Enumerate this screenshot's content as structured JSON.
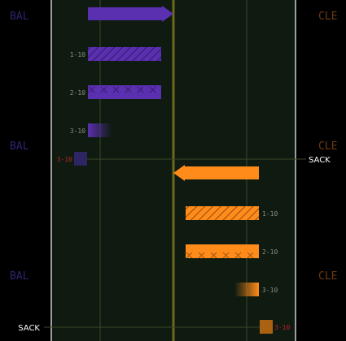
{
  "colors": {
    "page_bg": "#000000",
    "field": "#0f1a10",
    "field_border": "#ffffff",
    "grid": "#3a4a26",
    "midline": "#6b6b1a",
    "purple": "#5a2fb0",
    "purple_dark": "#2e2563",
    "orange": "#ff8c1a",
    "orange_dark": "#a86212",
    "row_label": "#8a8f80",
    "sack_label": "#ffffff",
    "sack_tick": "#b8262a",
    "side_left": "#2d2470",
    "side_right": "#6a3a16"
  },
  "sides": {
    "left": [
      "BAL",
      "BAL",
      "BAL"
    ],
    "right": [
      "CLE",
      "CLE",
      "CLE"
    ]
  },
  "chart_data": {
    "type": "bar",
    "field": {
      "x_range": [
        -10,
        10
      ]
    },
    "drives": [
      {
        "team": "BAL",
        "color": "purple",
        "direction": "right",
        "drive_arrow": {
          "start": -7,
          "end": 0
        },
        "plays": [
          {
            "label": "1-10",
            "start": -7,
            "end": -1,
            "style": "hatch"
          },
          {
            "label": "2-10",
            "start": -7,
            "end": -1,
            "style": "cross"
          },
          {
            "label": "3-10",
            "start": -7,
            "end": -5,
            "style": "fade"
          }
        ],
        "sack": {
          "label": "SACK",
          "tick": "3-10",
          "at": -7.6
        }
      },
      {
        "team": "CLE",
        "color": "orange",
        "direction": "left",
        "drive_arrow": {
          "start": 7,
          "end": 0
        },
        "plays": [
          {
            "label": "1-10",
            "start": 1,
            "end": 7,
            "style": "hatch"
          },
          {
            "label": "2-10",
            "start": 1,
            "end": 7,
            "style": "cross"
          },
          {
            "label": "3-10",
            "start": 5,
            "end": 7,
            "style": "fade"
          }
        ],
        "sack": {
          "label": "SACK",
          "tick": "3-10",
          "at": 7.6
        }
      }
    ]
  }
}
